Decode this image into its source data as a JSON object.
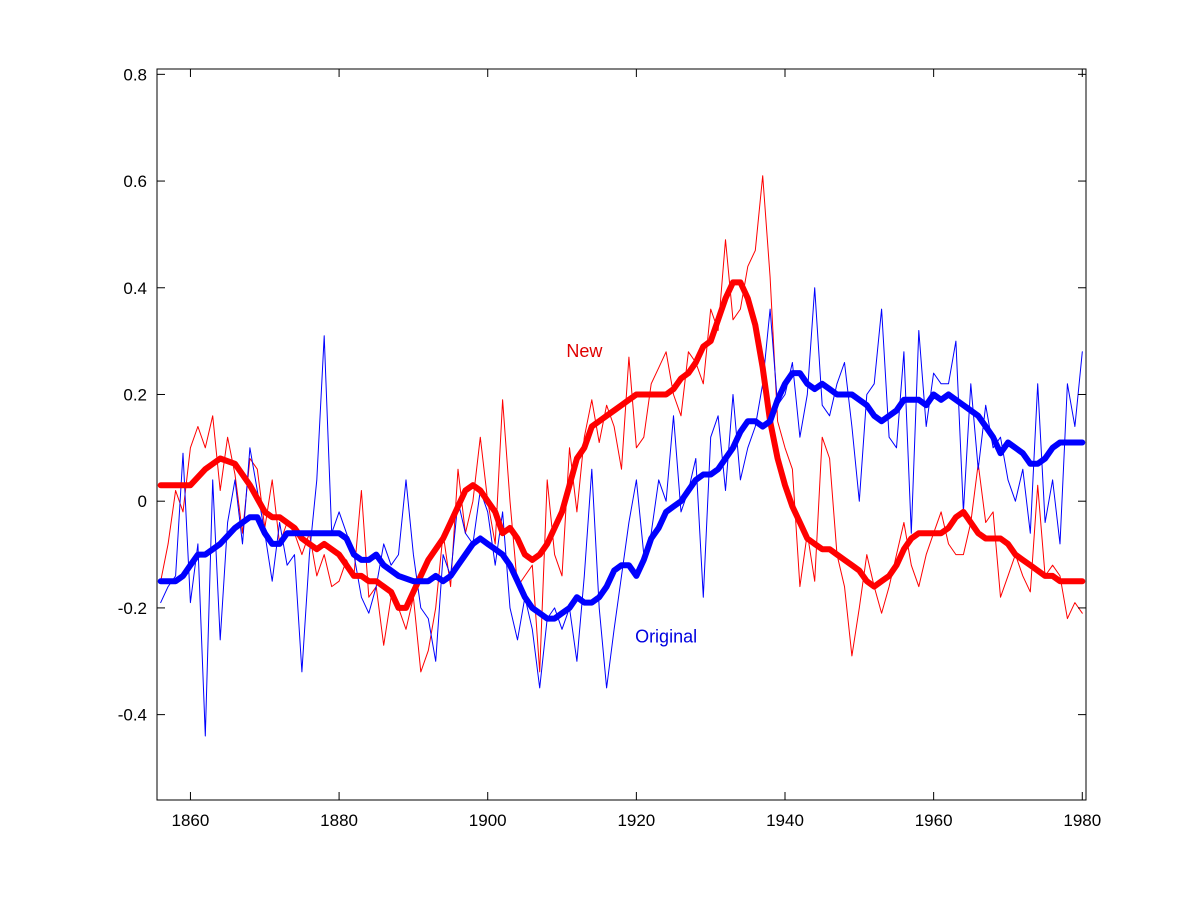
{
  "chart_data": {
    "type": "line",
    "title": "",
    "xlabel": "",
    "ylabel": "",
    "xlim": [
      1855.5,
      1980.5
    ],
    "ylim": [
      -0.56,
      0.81
    ],
    "xticks": [
      1860,
      1880,
      1900,
      1920,
      1940,
      1960,
      1980
    ],
    "yticks": [
      -0.4,
      -0.2,
      0,
      0.2,
      0.4,
      0.6,
      0.8
    ],
    "ytick_labels": [
      "-0.4",
      "-0.2",
      "0",
      "0.2",
      "0.4",
      "0.6",
      "0.8"
    ],
    "grid": false,
    "annotations": [
      {
        "text": "New",
        "x": 1913,
        "y": 0.27,
        "color": "#e00000"
      },
      {
        "text": "Original",
        "x": 1924,
        "y": -0.265,
        "color": "#0000e0"
      }
    ],
    "series": [
      {
        "color": "#ff0000",
        "width": 1,
        "style": "annual",
        "x": [
          1856,
          1857,
          1858,
          1859,
          1860,
          1861,
          1862,
          1863,
          1864,
          1865,
          1866,
          1867,
          1868,
          1869,
          1870,
          1871,
          1872,
          1873,
          1874,
          1875,
          1876,
          1877,
          1878,
          1879,
          1880,
          1881,
          1882,
          1883,
          1884,
          1885,
          1886,
          1887,
          1888,
          1889,
          1890,
          1891,
          1892,
          1893,
          1894,
          1895,
          1896,
          1897,
          1898,
          1899,
          1900,
          1901,
          1902,
          1903,
          1904,
          1905,
          1906,
          1907,
          1908,
          1909,
          1910,
          1911,
          1912,
          1913,
          1914,
          1915,
          1916,
          1917,
          1918,
          1919,
          1920,
          1921,
          1922,
          1923,
          1924,
          1925,
          1926,
          1927,
          1928,
          1929,
          1930,
          1931,
          1932,
          1933,
          1934,
          1935,
          1936,
          1937,
          1938,
          1939,
          1940,
          1941,
          1942,
          1943,
          1944,
          1945,
          1946,
          1947,
          1948,
          1949,
          1950,
          1951,
          1952,
          1953,
          1954,
          1955,
          1956,
          1957,
          1958,
          1959,
          1960,
          1961,
          1962,
          1963,
          1964,
          1965,
          1966,
          1967,
          1968,
          1969,
          1970,
          1971,
          1972,
          1973,
          1974,
          1975,
          1976,
          1977,
          1978,
          1979,
          1980
        ],
        "y": [
          -0.15,
          -0.08,
          0.02,
          -0.02,
          0.1,
          0.14,
          0.1,
          0.16,
          0.02,
          0.12,
          0.05,
          -0.06,
          0.08,
          0.06,
          -0.05,
          0.04,
          -0.08,
          -0.04,
          -0.06,
          -0.1,
          -0.06,
          -0.14,
          -0.1,
          -0.16,
          -0.15,
          -0.11,
          -0.14,
          0.02,
          -0.18,
          -0.16,
          -0.27,
          -0.18,
          -0.2,
          -0.24,
          -0.18,
          -0.32,
          -0.28,
          -0.2,
          -0.06,
          -0.16,
          0.06,
          -0.06,
          0.0,
          0.12,
          0.0,
          -0.08,
          0.19,
          0.0,
          -0.16,
          -0.14,
          -0.12,
          -0.32,
          0.04,
          -0.1,
          -0.14,
          0.1,
          -0.02,
          0.12,
          0.19,
          0.11,
          0.18,
          0.14,
          0.06,
          0.27,
          0.1,
          0.12,
          0.22,
          0.25,
          0.28,
          0.2,
          0.16,
          0.28,
          0.26,
          0.22,
          0.36,
          0.32,
          0.49,
          0.34,
          0.36,
          0.44,
          0.47,
          0.61,
          0.42,
          0.15,
          0.1,
          0.06,
          -0.16,
          -0.06,
          -0.15,
          0.12,
          0.08,
          -0.1,
          -0.16,
          -0.29,
          -0.2,
          -0.1,
          -0.16,
          -0.21,
          -0.16,
          -0.1,
          -0.04,
          -0.12,
          -0.16,
          -0.1,
          -0.06,
          -0.02,
          -0.08,
          -0.1,
          -0.1,
          -0.04,
          0.07,
          -0.04,
          -0.02,
          -0.18,
          -0.14,
          -0.1,
          -0.14,
          -0.17,
          0.03,
          -0.14,
          -0.12,
          -0.14,
          -0.22,
          -0.19,
          -0.21
        ]
      },
      {
        "color": "#0000ff",
        "width": 1,
        "style": "annual",
        "x": [
          1856,
          1857,
          1858,
          1859,
          1860,
          1861,
          1862,
          1863,
          1864,
          1865,
          1866,
          1867,
          1868,
          1869,
          1870,
          1871,
          1872,
          1873,
          1874,
          1875,
          1876,
          1877,
          1878,
          1879,
          1880,
          1881,
          1882,
          1883,
          1884,
          1885,
          1886,
          1887,
          1888,
          1889,
          1890,
          1891,
          1892,
          1893,
          1894,
          1895,
          1896,
          1897,
          1898,
          1899,
          1900,
          1901,
          1902,
          1903,
          1904,
          1905,
          1906,
          1907,
          1908,
          1909,
          1910,
          1911,
          1912,
          1913,
          1914,
          1915,
          1916,
          1917,
          1918,
          1919,
          1920,
          1921,
          1922,
          1923,
          1924,
          1925,
          1926,
          1927,
          1928,
          1929,
          1930,
          1931,
          1932,
          1933,
          1934,
          1935,
          1936,
          1937,
          1938,
          1939,
          1940,
          1941,
          1942,
          1943,
          1944,
          1945,
          1946,
          1947,
          1948,
          1949,
          1950,
          1951,
          1952,
          1953,
          1954,
          1955,
          1956,
          1957,
          1958,
          1959,
          1960,
          1961,
          1962,
          1963,
          1964,
          1965,
          1966,
          1967,
          1968,
          1969,
          1970,
          1971,
          1972,
          1973,
          1974,
          1975,
          1976,
          1977,
          1978,
          1979,
          1980
        ],
        "y": [
          -0.19,
          -0.16,
          -0.14,
          0.09,
          -0.19,
          -0.08,
          -0.44,
          0.04,
          -0.26,
          -0.04,
          0.04,
          -0.08,
          0.1,
          0.02,
          -0.06,
          -0.15,
          -0.04,
          -0.12,
          -0.1,
          -0.32,
          -0.1,
          0.04,
          0.31,
          -0.06,
          -0.02,
          -0.06,
          -0.1,
          -0.18,
          -0.21,
          -0.16,
          -0.08,
          -0.12,
          -0.1,
          0.04,
          -0.1,
          -0.2,
          -0.22,
          -0.3,
          -0.1,
          -0.14,
          0.0,
          -0.06,
          -0.08,
          0.02,
          -0.02,
          -0.12,
          -0.02,
          -0.2,
          -0.26,
          -0.18,
          -0.24,
          -0.35,
          -0.22,
          -0.2,
          -0.24,
          -0.2,
          -0.3,
          -0.14,
          0.06,
          -0.2,
          -0.35,
          -0.24,
          -0.14,
          -0.04,
          0.04,
          -0.1,
          -0.06,
          0.04,
          0.0,
          0.16,
          -0.02,
          0.02,
          0.08,
          -0.18,
          0.12,
          0.16,
          0.02,
          0.2,
          0.04,
          0.1,
          0.14,
          0.22,
          0.36,
          0.18,
          0.2,
          0.26,
          0.12,
          0.2,
          0.4,
          0.18,
          0.16,
          0.22,
          0.26,
          0.14,
          0.0,
          0.2,
          0.22,
          0.36,
          0.12,
          0.1,
          0.28,
          -0.06,
          0.32,
          0.14,
          0.24,
          0.22,
          0.22,
          0.3,
          -0.02,
          0.22,
          0.06,
          0.18,
          0.1,
          0.12,
          0.04,
          0.0,
          0.06,
          -0.06,
          0.22,
          -0.04,
          0.04,
          -0.08,
          0.22,
          0.14,
          0.28
        ]
      },
      {
        "color": "#ff0000",
        "width": 6,
        "style": "smoothed",
        "x": [
          1856,
          1858,
          1859,
          1860,
          1862,
          1864,
          1866,
          1868,
          1870,
          1871,
          1872,
          1874,
          1875,
          1876,
          1877,
          1878,
          1880,
          1881,
          1882,
          1883,
          1884,
          1885,
          1886,
          1887,
          1888,
          1889,
          1890,
          1891,
          1892,
          1893,
          1894,
          1895,
          1896,
          1897,
          1898,
          1899,
          1900,
          1901,
          1902,
          1903,
          1904,
          1905,
          1906,
          1907,
          1908,
          1909,
          1910,
          1911,
          1912,
          1913,
          1914,
          1915,
          1916,
          1917,
          1918,
          1919,
          1920,
          1921,
          1922,
          1923,
          1924,
          1925,
          1926,
          1927,
          1928,
          1929,
          1930,
          1931,
          1932,
          1933,
          1934,
          1935,
          1936,
          1937,
          1938,
          1939,
          1940,
          1941,
          1942,
          1943,
          1944,
          1945,
          1946,
          1947,
          1948,
          1949,
          1950,
          1951,
          1952,
          1953,
          1954,
          1955,
          1956,
          1957,
          1958,
          1959,
          1960,
          1961,
          1962,
          1963,
          1964,
          1965,
          1966,
          1967,
          1968,
          1969,
          1970,
          1971,
          1972,
          1973,
          1974,
          1975,
          1976,
          1977,
          1978,
          1979,
          1980
        ],
        "y": [
          0.03,
          0.03,
          0.03,
          0.03,
          0.06,
          0.08,
          0.07,
          0.03,
          -0.02,
          -0.03,
          -0.03,
          -0.05,
          -0.07,
          -0.08,
          -0.09,
          -0.08,
          -0.1,
          -0.12,
          -0.14,
          -0.14,
          -0.15,
          -0.15,
          -0.16,
          -0.17,
          -0.2,
          -0.2,
          -0.17,
          -0.14,
          -0.11,
          -0.09,
          -0.07,
          -0.04,
          -0.01,
          0.02,
          0.03,
          0.02,
          0.0,
          -0.02,
          -0.06,
          -0.05,
          -0.07,
          -0.1,
          -0.11,
          -0.1,
          -0.08,
          -0.05,
          -0.02,
          0.03,
          0.08,
          0.1,
          0.14,
          0.15,
          0.16,
          0.17,
          0.18,
          0.19,
          0.2,
          0.2,
          0.2,
          0.2,
          0.2,
          0.21,
          0.23,
          0.24,
          0.26,
          0.29,
          0.3,
          0.34,
          0.38,
          0.41,
          0.41,
          0.38,
          0.33,
          0.25,
          0.15,
          0.08,
          0.03,
          -0.01,
          -0.04,
          -0.07,
          -0.08,
          -0.09,
          -0.09,
          -0.1,
          -0.11,
          -0.12,
          -0.13,
          -0.15,
          -0.16,
          -0.15,
          -0.14,
          -0.12,
          -0.09,
          -0.07,
          -0.06,
          -0.06,
          -0.06,
          -0.06,
          -0.05,
          -0.03,
          -0.02,
          -0.04,
          -0.06,
          -0.07,
          -0.07,
          -0.07,
          -0.08,
          -0.1,
          -0.11,
          -0.12,
          -0.13,
          -0.14,
          -0.14,
          -0.15,
          -0.15,
          -0.15,
          -0.15
        ]
      },
      {
        "color": "#0000ff",
        "width": 6,
        "style": "smoothed",
        "x": [
          1856,
          1858,
          1859,
          1860,
          1861,
          1862,
          1864,
          1866,
          1868,
          1869,
          1870,
          1871,
          1872,
          1873,
          1874,
          1876,
          1878,
          1880,
          1881,
          1882,
          1883,
          1884,
          1885,
          1886,
          1887,
          1888,
          1890,
          1892,
          1893,
          1894,
          1895,
          1896,
          1897,
          1898,
          1899,
          1900,
          1901,
          1902,
          1903,
          1904,
          1905,
          1906,
          1907,
          1908,
          1909,
          1910,
          1911,
          1912,
          1913,
          1914,
          1915,
          1916,
          1917,
          1918,
          1919,
          1920,
          1921,
          1922,
          1923,
          1924,
          1925,
          1926,
          1927,
          1928,
          1929,
          1930,
          1931,
          1932,
          1933,
          1934,
          1935,
          1936,
          1937,
          1938,
          1939,
          1940,
          1941,
          1942,
          1943,
          1944,
          1945,
          1946,
          1947,
          1948,
          1949,
          1950,
          1951,
          1952,
          1953,
          1954,
          1955,
          1956,
          1957,
          1958,
          1959,
          1960,
          1961,
          1962,
          1963,
          1964,
          1965,
          1966,
          1967,
          1968,
          1969,
          1970,
          1971,
          1972,
          1973,
          1974,
          1975,
          1976,
          1977,
          1978,
          1979,
          1980
        ],
        "y": [
          -0.15,
          -0.15,
          -0.14,
          -0.12,
          -0.1,
          -0.1,
          -0.08,
          -0.05,
          -0.03,
          -0.03,
          -0.06,
          -0.08,
          -0.08,
          -0.06,
          -0.06,
          -0.06,
          -0.06,
          -0.06,
          -0.07,
          -0.1,
          -0.11,
          -0.11,
          -0.1,
          -0.12,
          -0.13,
          -0.14,
          -0.15,
          -0.15,
          -0.14,
          -0.15,
          -0.14,
          -0.12,
          -0.1,
          -0.08,
          -0.07,
          -0.08,
          -0.09,
          -0.1,
          -0.12,
          -0.15,
          -0.18,
          -0.2,
          -0.21,
          -0.22,
          -0.22,
          -0.21,
          -0.2,
          -0.18,
          -0.19,
          -0.19,
          -0.18,
          -0.16,
          -0.13,
          -0.12,
          -0.12,
          -0.14,
          -0.11,
          -0.07,
          -0.05,
          -0.02,
          -0.01,
          0.0,
          0.02,
          0.04,
          0.05,
          0.05,
          0.06,
          0.08,
          0.1,
          0.13,
          0.15,
          0.15,
          0.14,
          0.15,
          0.19,
          0.22,
          0.24,
          0.24,
          0.22,
          0.21,
          0.22,
          0.21,
          0.2,
          0.2,
          0.2,
          0.19,
          0.18,
          0.16,
          0.15,
          0.16,
          0.17,
          0.19,
          0.19,
          0.19,
          0.18,
          0.2,
          0.19,
          0.2,
          0.19,
          0.18,
          0.17,
          0.16,
          0.14,
          0.12,
          0.09,
          0.11,
          0.1,
          0.09,
          0.07,
          0.07,
          0.08,
          0.1,
          0.11,
          0.11,
          0.11,
          0.11
        ]
      }
    ]
  }
}
